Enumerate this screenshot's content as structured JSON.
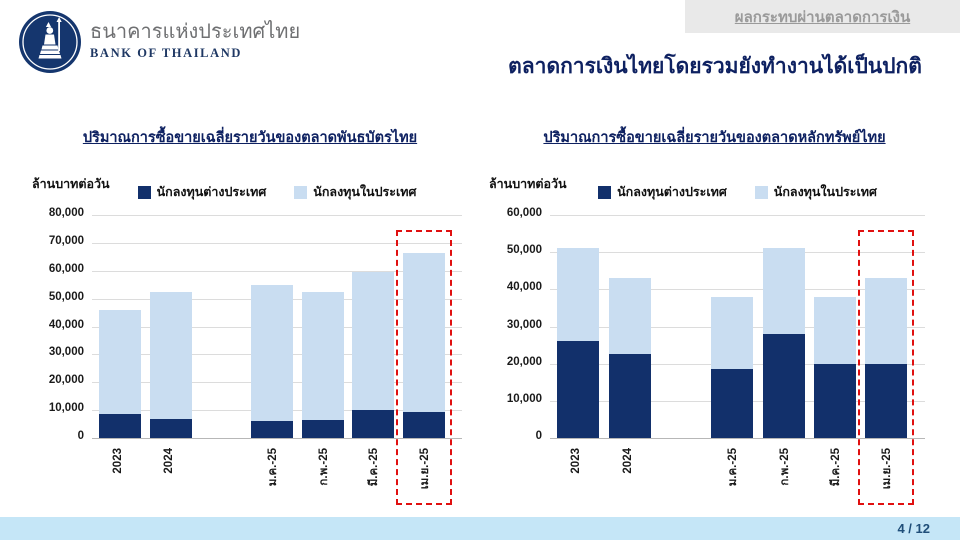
{
  "header": {
    "org_name_th": "ธนาคารแห่งประเทศไทย",
    "org_name_en": "BANK OF THAILAND",
    "banner_label": "ผลกระทบผ่านตลาดการเงิน",
    "slide_title": "ตลาดการเงินไทยโดยรวมยังทำงานได้เป็นปกติ"
  },
  "colors": {
    "navy": "#12306b",
    "light_blue": "#c9ddf1",
    "title_navy": "#0e2161",
    "highlight_red": "#e01010",
    "footer_bg": "#c5e6f7",
    "banner_bg": "#e9e9e9",
    "banner_text": "#9a9a9a"
  },
  "chart_data": [
    {
      "type": "bar",
      "subtype": "stacked",
      "title": "ปริมาณการซื้อขายเฉลี่ยรายวันของตลาดพันธบัตรไทย",
      "unit_label": "ล้านบาทต่อวัน",
      "categories": [
        "2023",
        "2024",
        "ม.ค.-25",
        "ก.พ.-25",
        "มี.ค.-25",
        "เม.ย.-25"
      ],
      "series": [
        {
          "name": "นักลงทุนต่างประเทศ",
          "color": "#12306b",
          "values": [
            8500,
            7000,
            6000,
            6500,
            10000,
            9500
          ]
        },
        {
          "name": "นักลงทุนในประเทศ",
          "color": "#c9ddf1",
          "values": [
            37500,
            45500,
            49000,
            46000,
            49500,
            57000
          ]
        }
      ],
      "stacked_totals": [
        46000,
        52500,
        55000,
        52500,
        59500,
        66500
      ],
      "ylim": [
        0,
        80000
      ],
      "ytick_step": 10000,
      "grid": true,
      "legend_position": "top",
      "highlight_last_category": true
    },
    {
      "type": "bar",
      "subtype": "stacked",
      "title": "ปริมาณการซื้อขายเฉลี่ยรายวันของตลาดหลักทรัพย์ไทย",
      "unit_label": "ล้านบาทต่อวัน",
      "categories": [
        "2023",
        "2024",
        "ม.ค.-25",
        "ก.พ.-25",
        "มี.ค.-25",
        "เม.ย.-25"
      ],
      "series": [
        {
          "name": "นักลงทุนต่างประเทศ",
          "color": "#12306b",
          "values": [
            26000,
            22500,
            18500,
            28000,
            20000,
            20000
          ]
        },
        {
          "name": "นักลงทุนในประเทศ",
          "color": "#c9ddf1",
          "values": [
            25000,
            20500,
            19500,
            23000,
            18000,
            23000
          ]
        }
      ],
      "stacked_totals": [
        51000,
        43000,
        38000,
        51000,
        38000,
        43000
      ],
      "ylim": [
        0,
        60000
      ],
      "ytick_step": 10000,
      "grid": true,
      "legend_position": "top",
      "highlight_last_category": true
    }
  ],
  "footer": {
    "page_number": "4 / 12"
  }
}
